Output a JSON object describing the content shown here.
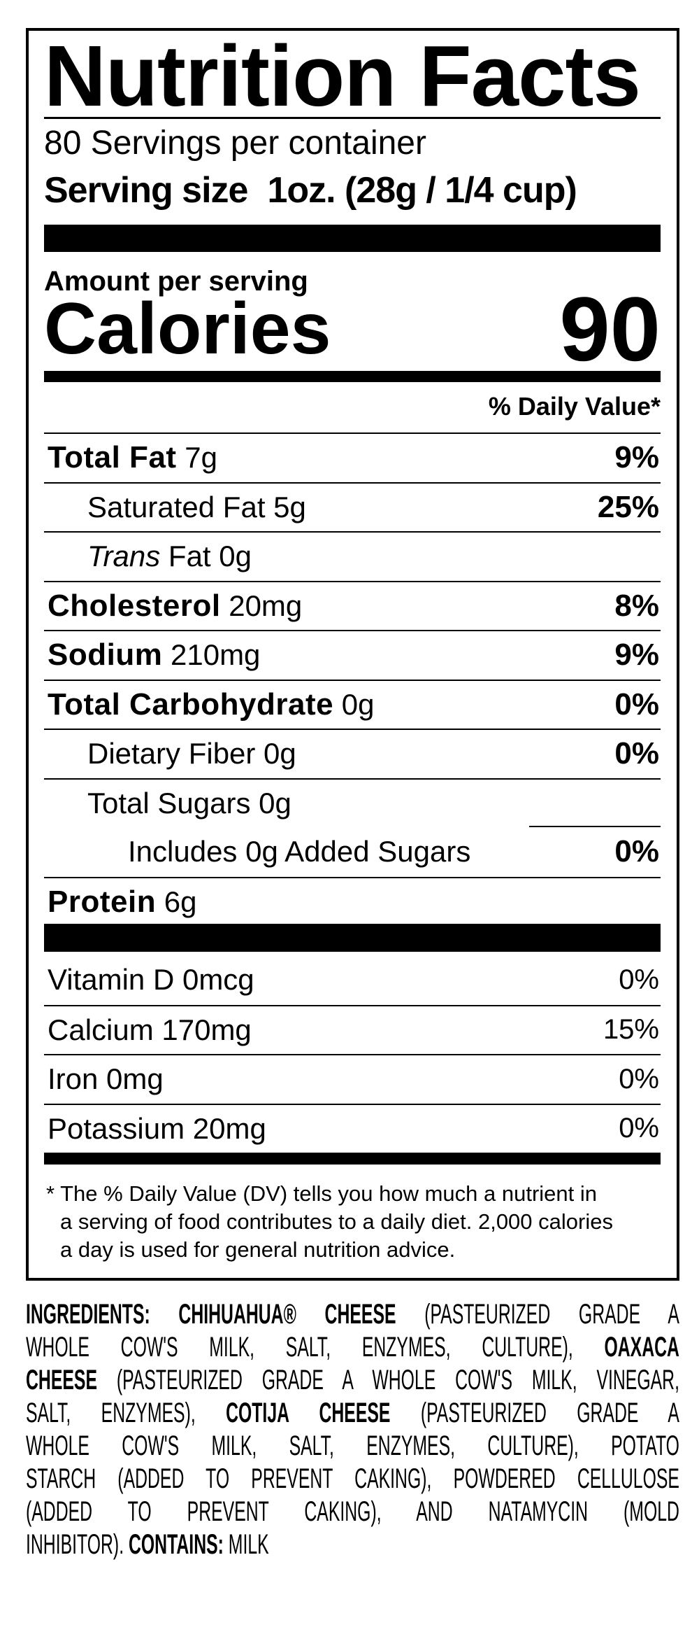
{
  "label": {
    "title": "Nutrition Facts",
    "servings_per_container": "80 Servings per container",
    "serving_size_label": "Serving size",
    "serving_size_value": "1oz. (28g / 1/4 cup)",
    "amount_per_serving": "Amount per serving",
    "calories_label": "Calories",
    "calories_value": "90",
    "dv_header": "% Daily Value*",
    "nutrients": [
      {
        "name": "Total Fat",
        "amount": "7g",
        "dv": "9%"
      },
      {
        "name": "Saturated Fat 5g",
        "dv": "25%"
      },
      {
        "name_italic": "Trans",
        "name": "Fat 0g"
      },
      {
        "name": "Cholesterol",
        "amount": "20mg",
        "dv": "8%"
      },
      {
        "name": "Sodium",
        "amount": "210mg",
        "dv": "9%"
      },
      {
        "name": "Total Carbohydrate",
        "amount": "0g",
        "dv": "0%"
      },
      {
        "name": "Dietary Fiber 0g",
        "dv": "0%"
      },
      {
        "name": "Total Sugars 0g"
      },
      {
        "name": "Includes 0g Added Sugars",
        "dv": "0%"
      },
      {
        "name": "Protein",
        "amount": "6g"
      }
    ],
    "vitamins": [
      {
        "name": "Vitamin D 0mcg",
        "dv": "0%"
      },
      {
        "name": "Calcium 170mg",
        "dv": "15%"
      },
      {
        "name": "Iron 0mg",
        "dv": "0%"
      },
      {
        "name": "Potassium 20mg",
        "dv": "0%"
      }
    ],
    "footnote": [
      "* The % Daily Value (DV) tells you how much a nutrient in",
      "a serving of food contributes to a daily diet. 2,000 calories",
      "a day is used for general nutrition advice."
    ]
  },
  "ingredients": {
    "lines": [
      [
        {
          "t": "INGREDIENTS: CHIHUAHUA® CHEESE",
          "b": true
        },
        {
          "t": " (PASTEURIZED GRADE A"
        }
      ],
      [
        {
          "t": "WHOLE COW'S MILK, SALT, ENZYMES, CULTURE), "
        },
        {
          "t": "OAXACA",
          "b": true
        }
      ],
      [
        {
          "t": "CHEESE",
          "b": true
        },
        {
          "t": " (PASTEURIZED GRADE A WHOLE COW'S MILK, VINEGAR,"
        }
      ],
      [
        {
          "t": "SALT, ENZYMES), "
        },
        {
          "t": "COTIJA CHEESE",
          "b": true
        },
        {
          "t": " (PASTEURIZED GRADE A"
        }
      ],
      [
        {
          "t": "WHOLE COW'S MILK, SALT, ENZYMES, CULTURE), POTATO"
        }
      ],
      [
        {
          "t": "STARCH (ADDED TO PREVENT CAKING), POWDERED CELLULOSE"
        }
      ],
      [
        {
          "t": "(ADDED TO PREVENT CAKING), AND NATAMYCIN (MOLD"
        }
      ],
      [
        {
          "t": "INHIBITOR). "
        },
        {
          "t": "CONTAINS:",
          "b": true
        },
        {
          "t": " MILK"
        }
      ]
    ]
  }
}
